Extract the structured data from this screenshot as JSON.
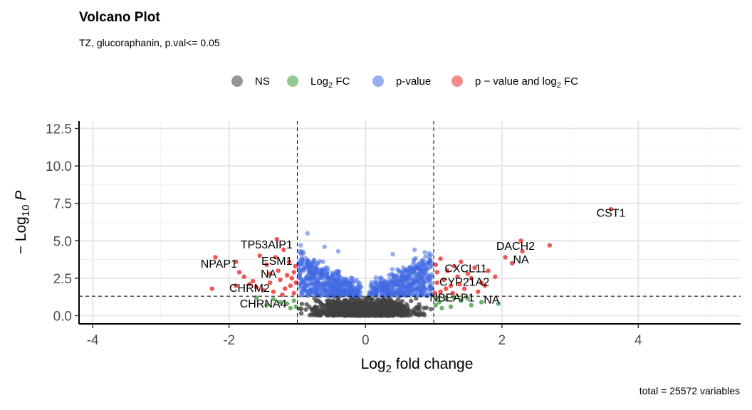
{
  "title": "Volcano Plot",
  "subtitle": "TZ, glucoraphanin, p.val<= 0.05",
  "caption": "total = 25572 variables",
  "chart_data": {
    "type": "scatter",
    "xlabel": "Log2 fold change",
    "ylabel": "−Log10 P",
    "xlim": [
      -4.2,
      5.5
    ],
    "ylim": [
      -0.55,
      13.0
    ],
    "x_ticks": [
      -4,
      -2,
      0,
      2,
      4
    ],
    "y_ticks": [
      0.0,
      2.5,
      5.0,
      7.5,
      10.0,
      12.5
    ],
    "x_tick_labels": [
      "-4",
      "-2",
      "0",
      "2",
      "4"
    ],
    "y_tick_labels": [
      "0.0",
      "2.5",
      "5.0",
      "7.5",
      "10.0",
      "12.5"
    ],
    "grid": true,
    "fc_cutoff": 1.0,
    "p_cutoff_neglog10": 1.3,
    "legend_position": "top",
    "legend": [
      {
        "key": "NS",
        "label": "NS",
        "color": "#404040"
      },
      {
        "key": "fc",
        "label": "Log2 FC",
        "color": "#3a9a3a"
      },
      {
        "key": "p",
        "label": "p-value",
        "color": "#4169e1"
      },
      {
        "key": "both",
        "label": "p − value and log2 FC",
        "color": "#ee2b2b"
      }
    ],
    "points_both": [
      [
        3.6,
        7.1
      ],
      [
        2.7,
        4.7
      ],
      [
        2.28,
        5.0
      ],
      [
        2.3,
        4.3
      ],
      [
        2.05,
        3.9
      ],
      [
        2.15,
        3.5
      ],
      [
        1.8,
        3.0
      ],
      [
        1.7,
        2.2
      ],
      [
        1.6,
        3.2
      ],
      [
        1.5,
        2.8
      ],
      [
        1.4,
        3.6
      ],
      [
        1.35,
        2.6
      ],
      [
        1.3,
        3.3
      ],
      [
        1.25,
        2.0
      ],
      [
        1.2,
        3.0
      ],
      [
        1.15,
        2.4
      ],
      [
        1.1,
        3.8
      ],
      [
        1.1,
        1.6
      ],
      [
        1.05,
        2.9
      ],
      [
        1.05,
        2.2
      ],
      [
        1.02,
        1.5
      ],
      [
        1.03,
        3.4
      ],
      [
        1.45,
        1.8
      ],
      [
        1.55,
        2.5
      ],
      [
        1.65,
        1.6
      ],
      [
        1.9,
        2.6
      ],
      [
        1.18,
        1.8
      ],
      [
        1.28,
        1.5
      ],
      [
        1.38,
        2.1
      ],
      [
        1.75,
        2.0
      ],
      [
        -2.2,
        3.9
      ],
      [
        -2.25,
        1.8
      ],
      [
        -1.9,
        3.6
      ],
      [
        -1.85,
        2.9
      ],
      [
        -1.9,
        2.0
      ],
      [
        -1.78,
        2.6
      ],
      [
        -1.65,
        2.3
      ],
      [
        -1.6,
        1.9
      ],
      [
        -1.55,
        4.0
      ],
      [
        -1.45,
        3.4
      ],
      [
        -1.4,
        2.8
      ],
      [
        -1.4,
        2.2
      ],
      [
        -1.35,
        1.6
      ],
      [
        -1.3,
        5.1
      ],
      [
        -1.28,
        3.0
      ],
      [
        -1.25,
        2.4
      ],
      [
        -1.2,
        4.4
      ],
      [
        -1.18,
        1.8
      ],
      [
        -1.15,
        2.7
      ],
      [
        -1.12,
        3.6
      ],
      [
        -1.1,
        2.0
      ],
      [
        -1.08,
        2.5
      ],
      [
        -1.05,
        1.5
      ],
      [
        -1.05,
        2.9
      ],
      [
        -1.03,
        3.3
      ],
      [
        -1.5,
        1.7
      ],
      [
        -1.7,
        2.1
      ],
      [
        -1.32,
        3.9
      ],
      [
        -1.22,
        1.4
      ],
      [
        -1.02,
        2.2
      ]
    ],
    "points_fc": [
      [
        1.95,
        0.8
      ],
      [
        1.7,
        0.9
      ],
      [
        1.55,
        0.7
      ],
      [
        1.4,
        1.0
      ],
      [
        1.25,
        0.6
      ],
      [
        1.18,
        1.1
      ],
      [
        1.12,
        0.5
      ],
      [
        1.08,
        0.9
      ],
      [
        1.03,
        0.7
      ],
      [
        1.3,
        1.2
      ],
      [
        1.5,
        1.15
      ],
      [
        1.05,
        1.2
      ],
      [
        -1.6,
        1.2
      ],
      [
        -1.15,
        0.8
      ],
      [
        -1.1,
        0.5
      ],
      [
        -1.05,
        1.0
      ],
      [
        -1.25,
        0.9
      ],
      [
        -1.35,
        1.1
      ],
      [
        -1.02,
        0.6
      ],
      [
        -1.45,
        0.7
      ]
    ],
    "labels": [
      {
        "text": "CST1",
        "x": 3.6,
        "y": 6.6
      },
      {
        "text": "DACH2",
        "x": 2.2,
        "y": 4.4
      },
      {
        "text": "NA",
        "x": 2.28,
        "y": 3.5
      },
      {
        "text": "CXCL11",
        "x": 1.47,
        "y": 2.9
      },
      {
        "text": "CYP21A2",
        "x": 1.45,
        "y": 2.0
      },
      {
        "text": "NBEAP1",
        "x": 1.27,
        "y": 0.95
      },
      {
        "text": "NA",
        "x": 1.85,
        "y": 0.8
      },
      {
        "text": "TP53AIP1",
        "x": -1.45,
        "y": 4.5
      },
      {
        "text": "ESM1",
        "x": -1.3,
        "y": 3.4
      },
      {
        "text": "NPAP1",
        "x": -2.15,
        "y": 3.2
      },
      {
        "text": "NA",
        "x": -1.42,
        "y": 2.55
      },
      {
        "text": "CHRM2",
        "x": -1.7,
        "y": 1.6
      },
      {
        "text": "CHRNA4",
        "x": -1.5,
        "y": 0.55
      }
    ]
  }
}
